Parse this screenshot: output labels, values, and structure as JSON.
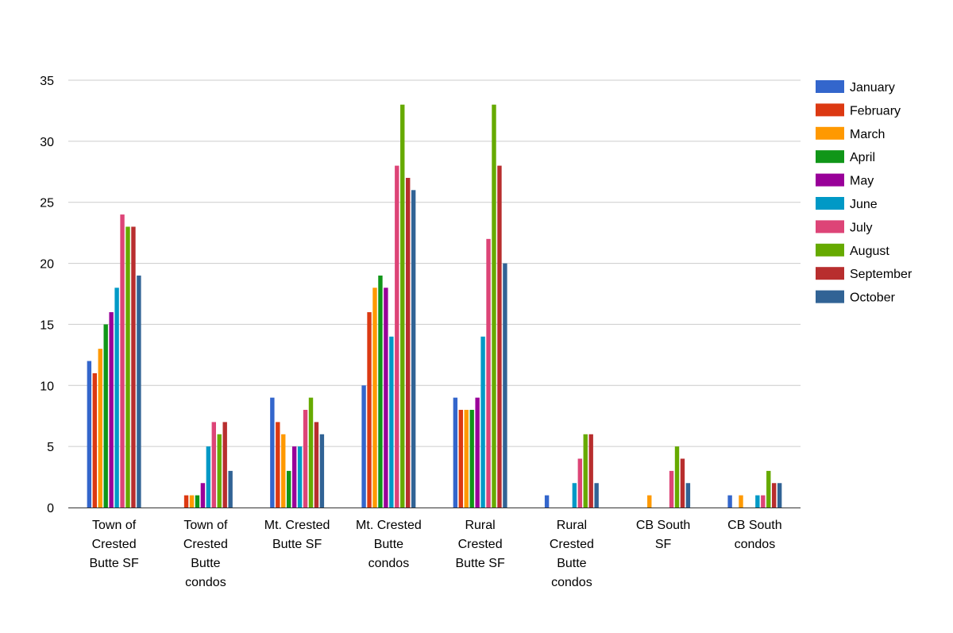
{
  "chart_data": {
    "type": "bar",
    "title": "",
    "xlabel": "",
    "ylabel": "",
    "ylim": [
      0,
      35
    ],
    "yticks": [
      0,
      5,
      10,
      15,
      20,
      25,
      30,
      35
    ],
    "grid": true,
    "legend_position": "right",
    "categories": [
      [
        "Town of",
        "Crested",
        "Butte SF"
      ],
      [
        "Town of",
        "Crested",
        "Butte",
        "condos"
      ],
      [
        "Mt. Crested",
        "Butte SF"
      ],
      [
        "Mt. Crested",
        "Butte",
        "condos"
      ],
      [
        "Rural",
        "Crested",
        "Butte SF"
      ],
      [
        "Rural",
        "Crested",
        "Butte",
        "condos"
      ],
      [
        "CB South",
        "SF"
      ],
      [
        "CB South",
        "condos"
      ]
    ],
    "series": [
      {
        "name": "January",
        "color": "#3366cc",
        "values": [
          12,
          0,
          9,
          10,
          9,
          1,
          0,
          1
        ]
      },
      {
        "name": "February",
        "color": "#dc3912",
        "values": [
          11,
          1,
          7,
          16,
          8,
          0,
          0,
          0
        ]
      },
      {
        "name": "March",
        "color": "#ff9900",
        "values": [
          13,
          1,
          6,
          18,
          8,
          0,
          1,
          1
        ]
      },
      {
        "name": "April",
        "color": "#109618",
        "values": [
          15,
          1,
          3,
          19,
          8,
          0,
          0,
          0
        ]
      },
      {
        "name": "May",
        "color": "#990099",
        "values": [
          16,
          2,
          5,
          18,
          9,
          0,
          0,
          0
        ]
      },
      {
        "name": "June",
        "color": "#0099c6",
        "values": [
          18,
          5,
          5,
          14,
          14,
          2,
          0,
          1
        ]
      },
      {
        "name": "July",
        "color": "#dd4477",
        "values": [
          24,
          7,
          8,
          28,
          22,
          4,
          3,
          1
        ]
      },
      {
        "name": "August",
        "color": "#66aa00",
        "values": [
          23,
          6,
          9,
          33,
          33,
          6,
          5,
          3
        ]
      },
      {
        "name": "September",
        "color": "#b82e2e",
        "values": [
          23,
          7,
          7,
          27,
          28,
          6,
          4,
          2
        ]
      },
      {
        "name": "October",
        "color": "#316395",
        "values": [
          19,
          3,
          6,
          26,
          20,
          2,
          2,
          2
        ]
      }
    ]
  }
}
